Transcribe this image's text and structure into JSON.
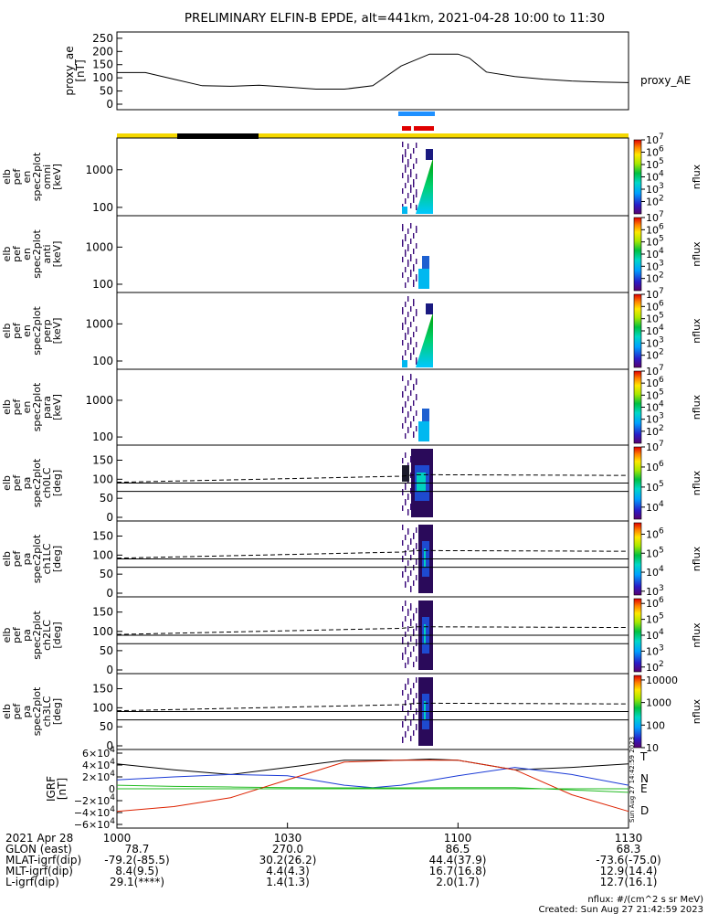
{
  "title": "PRELIMINARY ELFIN-B EPDE, alt=441km, 2021-04-28 10:00 to 11:30",
  "colors": {
    "sunlight_bar": "#f5d800",
    "shadow_bar": "#000000",
    "science_zone_blue": "#1e90ff",
    "science_zone_red": "#e00000",
    "grf_T": "#000000",
    "grf_N": "#1a3ad6",
    "grf_E": "#22bb22",
    "grf_D": "#dd2200"
  },
  "chart_data": [
    {
      "type": "line",
      "panel": "proxy_ae",
      "ylabel": "proxy_ae\n[nT]",
      "series_label": "proxy_AE",
      "ylim": [
        0,
        260
      ],
      "yticks": [
        "250",
        "200",
        "150",
        "100",
        "50",
        "0"
      ],
      "ytick_values": [
        250,
        200,
        150,
        100,
        50,
        0
      ],
      "x_minutes": [
        0,
        5,
        10,
        15,
        20,
        25,
        30,
        35,
        40,
        45,
        50,
        55,
        60,
        62,
        65,
        70,
        75,
        80,
        85,
        90
      ],
      "values": [
        120,
        120,
        95,
        70,
        68,
        72,
        65,
        57,
        57,
        70,
        145,
        190,
        190,
        175,
        122,
        105,
        95,
        88,
        84,
        82
      ]
    },
    {
      "type": "heatmap",
      "panel": "omni",
      "ylabel": [
        "elb",
        "pef",
        "en",
        "spec2plot",
        "omni",
        "[keV]"
      ],
      "yscale": "log",
      "ylim": [
        60,
        7000
      ],
      "yticks": [
        "1000",
        "100"
      ],
      "ytick_values": [
        1000,
        100
      ],
      "colorbar": {
        "label": "nflux",
        "ticks": [
          "10^7",
          "10^6",
          "10^5",
          "10^4",
          "10^3",
          "10^2"
        ],
        "exponents": [
          7,
          6,
          5,
          4,
          3,
          2
        ],
        "range": [
          1,
          7
        ]
      }
    },
    {
      "type": "heatmap",
      "panel": "anti",
      "ylabel": [
        "elb",
        "pef",
        "en",
        "spec2plot",
        "anti",
        "[keV]"
      ],
      "yscale": "log",
      "ylim": [
        60,
        7000
      ],
      "yticks": [
        "1000",
        "100"
      ],
      "ytick_values": [
        1000,
        100
      ],
      "colorbar": {
        "label": "nflux",
        "ticks": [
          "10^7",
          "10^6",
          "10^5",
          "10^4",
          "10^3",
          "10^2"
        ],
        "exponents": [
          7,
          6,
          5,
          4,
          3,
          2
        ],
        "range": [
          1,
          7
        ]
      }
    },
    {
      "type": "heatmap",
      "panel": "perp",
      "ylabel": [
        "elb",
        "pef",
        "en",
        "spec2plot",
        "perp",
        "[keV]"
      ],
      "yscale": "log",
      "ylim": [
        60,
        7000
      ],
      "yticks": [
        "1000",
        "100"
      ],
      "ytick_values": [
        1000,
        100
      ],
      "colorbar": {
        "label": "nflux",
        "ticks": [
          "10^7",
          "10^6",
          "10^5",
          "10^4",
          "10^3",
          "10^2"
        ],
        "exponents": [
          7,
          6,
          5,
          4,
          3,
          2
        ],
        "range": [
          1,
          7
        ]
      }
    },
    {
      "type": "heatmap",
      "panel": "para",
      "ylabel": [
        "elb",
        "pef",
        "en",
        "spec2plot",
        "para",
        "[keV]"
      ],
      "yscale": "log",
      "ylim": [
        60,
        7000
      ],
      "yticks": [
        "1000",
        "100"
      ],
      "ytick_values": [
        1000,
        100
      ],
      "colorbar": {
        "label": "nflux",
        "ticks": [
          "10^7",
          "10^6",
          "10^5",
          "10^4",
          "10^3",
          "10^2"
        ],
        "exponents": [
          7,
          6,
          5,
          4,
          3,
          2
        ],
        "range": [
          1,
          7
        ]
      }
    },
    {
      "type": "heatmap",
      "panel": "ch0LC",
      "ylabel": [
        "elb",
        "pef",
        "pa",
        "spec2plot",
        "ch0LC",
        "[deg]"
      ],
      "ylim": [
        0,
        180
      ],
      "yticks": [
        "150",
        "100",
        "50",
        "0"
      ],
      "ytick_values": [
        150,
        100,
        50,
        0
      ],
      "colorbar": {
        "label": "nflux",
        "ticks": [
          "10^7",
          "10^6",
          "10^5",
          "10^4"
        ],
        "exponents": [
          7,
          6,
          5,
          4
        ],
        "range": [
          3.4,
          7
        ]
      }
    },
    {
      "type": "heatmap",
      "panel": "ch1LC",
      "ylabel": [
        "elb",
        "pef",
        "pa",
        "spec2plot",
        "ch1LC",
        "[deg]"
      ],
      "ylim": [
        0,
        180
      ],
      "yticks": [
        "150",
        "100",
        "50",
        "0"
      ],
      "ytick_values": [
        150,
        100,
        50,
        0
      ],
      "colorbar": {
        "label": "nflux",
        "ticks": [
          "10^6",
          "10^5",
          "10^4",
          "10^3"
        ],
        "exponents": [
          6,
          5,
          4,
          3
        ],
        "range": [
          2.8,
          6.6
        ]
      }
    },
    {
      "type": "heatmap",
      "panel": "ch2LC",
      "ylabel": [
        "elb",
        "pef",
        "pa",
        "spec2plot",
        "ch2LC",
        "[deg]"
      ],
      "ylim": [
        0,
        180
      ],
      "yticks": [
        "150",
        "100",
        "50",
        "0"
      ],
      "ytick_values": [
        150,
        100,
        50,
        0
      ],
      "colorbar": {
        "label": "nflux",
        "ticks": [
          "10^6",
          "10^5",
          "10^4",
          "10^3",
          "10^2"
        ],
        "exponents": [
          6,
          5,
          4,
          3,
          2
        ],
        "range": [
          1.7,
          6.3
        ]
      }
    },
    {
      "type": "heatmap",
      "panel": "ch3LC",
      "ylabel": [
        "elb",
        "pef",
        "pa",
        "spec2plot",
        "ch3LC",
        "[deg]"
      ],
      "ylim": [
        0,
        180
      ],
      "yticks": [
        "150",
        "100",
        "50",
        "0"
      ],
      "ytick_values": [
        150,
        100,
        50,
        0
      ],
      "colorbar": {
        "label": "nflux",
        "ticks": [
          "10000",
          "1000",
          "100",
          "10"
        ],
        "exponents": [
          4,
          3,
          2,
          1
        ],
        "range": [
          1,
          4.2
        ]
      }
    },
    {
      "type": "line",
      "panel": "IGRF",
      "ylabel": "IGRF\n[nT]",
      "ylim": [
        -60000,
        60000
      ],
      "yticks": [
        "6×10^4",
        "4×10^4",
        "2×10^4",
        "0",
        "−2×10^4",
        "−4×10^4",
        "−6×10^4"
      ],
      "ytick_values": [
        60000,
        40000,
        20000,
        0,
        -20000,
        -40000,
        -60000
      ],
      "series": [
        {
          "name": "T",
          "x_minutes": [
            0,
            10,
            20,
            30,
            40,
            50,
            55,
            60,
            70,
            80,
            90
          ],
          "values": [
            42000,
            32000,
            24000,
            36000,
            48000,
            48000,
            50000,
            48000,
            32000,
            36000,
            42000
          ]
        },
        {
          "name": "N",
          "x_minutes": [
            0,
            10,
            20,
            30,
            40,
            45,
            50,
            60,
            70,
            80,
            90
          ],
          "values": [
            15000,
            20000,
            24000,
            22000,
            6000,
            2000,
            6000,
            22000,
            36000,
            24000,
            6000
          ]
        },
        {
          "name": "E",
          "x_minutes": [
            0,
            10,
            20,
            30,
            40,
            50,
            60,
            70,
            80,
            90
          ],
          "values": [
            6000,
            4000,
            3000,
            2000,
            1500,
            1500,
            2000,
            2000,
            -2000,
            -6000
          ]
        },
        {
          "name": "D",
          "x_minutes": [
            0,
            10,
            20,
            30,
            40,
            50,
            60,
            70,
            80,
            90
          ],
          "values": [
            -38000,
            -30000,
            -15000,
            15000,
            45000,
            48000,
            48000,
            32000,
            -10000,
            -38000
          ]
        }
      ],
      "series_labels": [
        "T",
        "N",
        "E",
        "D"
      ],
      "side_text": "Sun Aug 27 14:42:59 2023"
    }
  ],
  "time_axis": {
    "ticks": [
      "1000",
      "1030",
      "1100",
      "1130"
    ],
    "rows": [
      {
        "label": "2021 Apr 28",
        "values": [
          "1000",
          "1030",
          "1100",
          "1130"
        ]
      },
      {
        "label": "GLON (east)",
        "values": [
          "78.7",
          "270.0",
          "86.5",
          "68.3"
        ]
      },
      {
        "label": "MLAT-igrf(dip)",
        "values": [
          "-79.2(-85.5)",
          "30.2(26.2)",
          "44.4(37.9)",
          "-73.6(-75.0)"
        ]
      },
      {
        "label": "MLT-igrf(dip)",
        "values": [
          "8.4(9.5)",
          "4.4(4.3)",
          "16.7(16.8)",
          "12.9(14.4)"
        ]
      },
      {
        "label": "L-igrf(dip)",
        "values": [
          "29.1(****)",
          "1.4(1.3)",
          "2.0(1.7)",
          "12.7(16.1)"
        ]
      }
    ]
  },
  "footer": {
    "units": "nflux: #/(cm^2 s sr MeV)",
    "created": "Created: Sun Aug 27 21:42:59 2023"
  }
}
